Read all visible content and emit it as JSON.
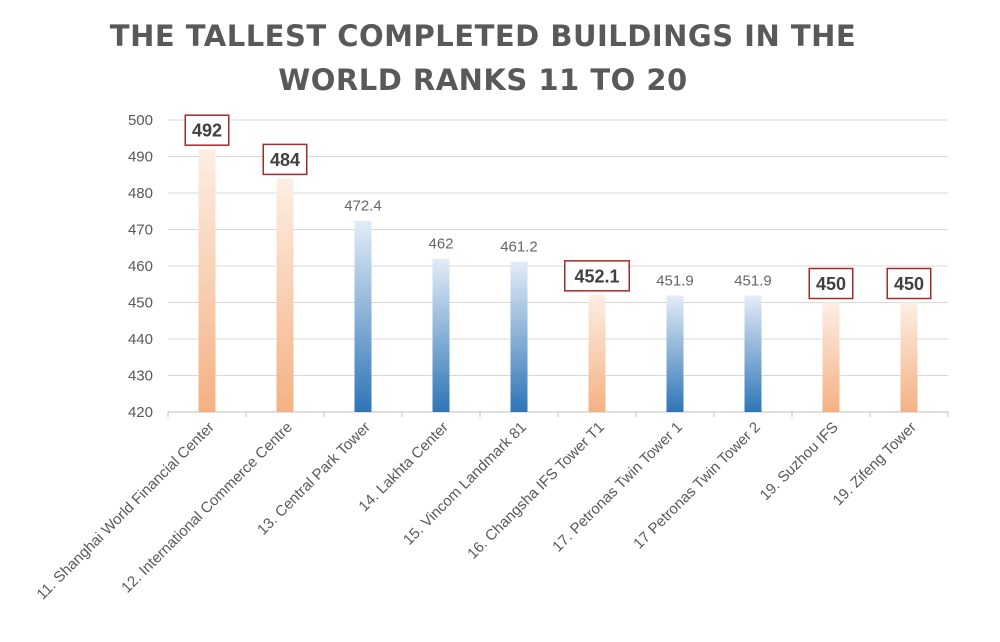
{
  "title": {
    "line1": "THE TALLEST COMPLETED BUILDINGS IN THE",
    "line2": "WORLD RANKS 11 TO 20"
  },
  "colors": {
    "highlight_bar": "#f4b183",
    "normal_bar": "#2e75b6",
    "highlight_box": "#a8282c",
    "grid": "#d9d9d9",
    "text": "#595959"
  },
  "chart_data": {
    "type": "bar",
    "title": "THE TALLEST COMPLETED BUILDINGS IN THE WORLD RANKS 11 TO 20",
    "categories": [
      "11. Shanghai World Financial Center",
      "12. International Commerce Centre",
      "13. Central Park Tower",
      "14. Lakhta Center",
      "15. Vincom Landmark 81",
      "16. Changsha IFS Tower T1",
      "17. Petronas Twin Tower 1",
      "17 Petronas Twin Tower 2",
      "19. Suzhou IFS",
      "19. Zifeng Tower"
    ],
    "values": [
      492,
      484,
      472.4,
      462,
      461.2,
      452.1,
      451.9,
      451.9,
      450,
      450
    ],
    "value_labels": [
      "492",
      "484",
      "472.4",
      "462",
      "461.2",
      "452.1",
      "451.9",
      "451.9",
      "450",
      "450"
    ],
    "highlighted": [
      true,
      true,
      false,
      false,
      false,
      true,
      false,
      false,
      true,
      true
    ],
    "xlabel": "",
    "ylabel": "",
    "ylim": [
      420,
      500
    ],
    "yticks": [
      420,
      430,
      440,
      450,
      460,
      470,
      480,
      490,
      500
    ],
    "grid": true,
    "legend": false
  }
}
